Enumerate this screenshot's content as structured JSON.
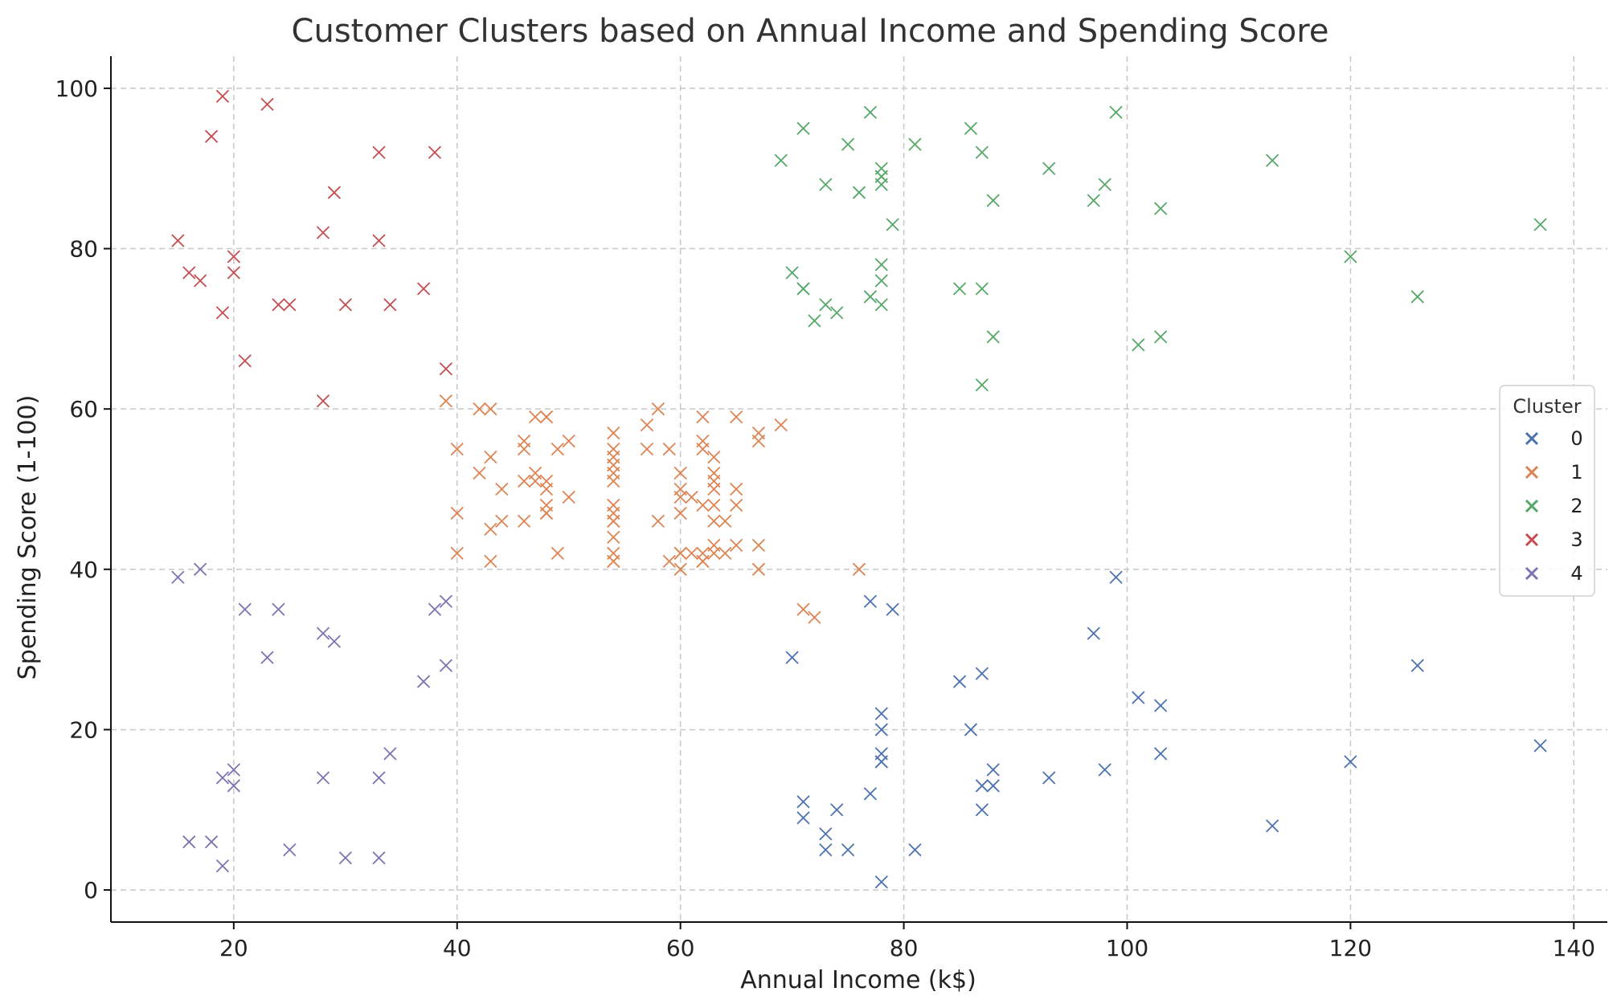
{
  "chart_data": {
    "type": "scatter",
    "title": "Customer Clusters based on Annual Income and Spending Score",
    "xlabel": "Annual Income (k$)",
    "ylabel": "Spending Score (1-100)",
    "xlim": [
      9,
      143
    ],
    "ylim": [
      -4,
      104
    ],
    "xticks": [
      20,
      40,
      60,
      80,
      100,
      120,
      140
    ],
    "yticks": [
      0,
      20,
      40,
      60,
      80,
      100
    ],
    "grid": true,
    "marker": "x",
    "legend": {
      "title": "Cluster",
      "placement": "right"
    },
    "series": [
      {
        "name": "0",
        "color": "#4c72b0",
        "x": [
          70,
          71,
          71,
          73,
          73,
          74,
          75,
          77,
          77,
          78,
          78,
          78,
          78,
          78,
          78,
          79,
          81,
          85,
          86,
          87,
          87,
          87,
          88,
          88,
          93,
          97,
          98,
          99,
          101,
          103,
          103,
          113,
          120,
          126,
          137
        ],
        "y": [
          29,
          11,
          9,
          7,
          5,
          10,
          5,
          12,
          36,
          22,
          20,
          17,
          16,
          1,
          16,
          35,
          5,
          26,
          20,
          27,
          13,
          10,
          13,
          15,
          14,
          32,
          15,
          39,
          24,
          17,
          23,
          8,
          16,
          28,
          18
        ]
      },
      {
        "name": "1",
        "color": "#dd8452",
        "x": [
          39,
          40,
          40,
          40,
          42,
          42,
          43,
          43,
          43,
          43,
          44,
          44,
          46,
          46,
          46,
          46,
          47,
          47,
          47,
          48,
          48,
          48,
          48,
          48,
          48,
          48,
          49,
          49,
          50,
          50,
          54,
          54,
          54,
          54,
          54,
          54,
          54,
          54,
          54,
          54,
          54,
          54,
          54,
          54,
          57,
          57,
          58,
          58,
          59,
          59,
          60,
          60,
          60,
          60,
          60,
          60,
          60,
          61,
          61,
          62,
          62,
          62,
          62,
          62,
          62,
          62,
          63,
          63,
          63,
          63,
          63,
          63,
          63,
          63,
          64,
          64,
          65,
          65,
          65,
          65,
          67,
          67,
          67,
          67,
          69,
          71,
          72,
          76
        ],
        "y": [
          61,
          55,
          47,
          42,
          60,
          52,
          60,
          54,
          45,
          41,
          50,
          46,
          51,
          46,
          56,
          55,
          52,
          59,
          51,
          59,
          50,
          48,
          59,
          47,
          51,
          47,
          55,
          42,
          56,
          49,
          57,
          55,
          54,
          53,
          52,
          51,
          48,
          47,
          46,
          44,
          42,
          41,
          41,
          46,
          58,
          55,
          60,
          46,
          55,
          41,
          49,
          40,
          42,
          52,
          47,
          50,
          42,
          49,
          42,
          59,
          56,
          55,
          48,
          41,
          42,
          41,
          54,
          51,
          52,
          48,
          46,
          43,
          50,
          42,
          46,
          42,
          48,
          50,
          43,
          59,
          43,
          57,
          56,
          40,
          58,
          35,
          34,
          40
        ]
      },
      {
        "name": "2",
        "color": "#55a868",
        "x": [
          69,
          70,
          71,
          71,
          71,
          72,
          73,
          73,
          74,
          75,
          76,
          77,
          77,
          78,
          78,
          78,
          78,
          78,
          78,
          78,
          79,
          81,
          85,
          86,
          87,
          87,
          87,
          88,
          88,
          93,
          97,
          98,
          99,
          101,
          103,
          103,
          113,
          120,
          126,
          137
        ],
        "y": [
          91,
          77,
          95,
          75,
          75,
          71,
          88,
          73,
          72,
          93,
          87,
          97,
          74,
          90,
          88,
          76,
          89,
          78,
          73,
          89,
          83,
          93,
          75,
          95,
          63,
          75,
          92,
          86,
          69,
          90,
          86,
          88,
          97,
          68,
          85,
          69,
          91,
          79,
          74,
          83
        ]
      },
      {
        "name": "3",
        "color": "#c44e52",
        "x": [
          15,
          16,
          17,
          18,
          19,
          19,
          20,
          20,
          21,
          23,
          24,
          25,
          28,
          28,
          29,
          30,
          33,
          33,
          34,
          37,
          38,
          39
        ],
        "y": [
          81,
          77,
          76,
          94,
          72,
          99,
          77,
          79,
          66,
          98,
          73,
          73,
          82,
          61,
          87,
          73,
          92,
          81,
          73,
          75,
          92,
          65
        ]
      },
      {
        "name": "4",
        "color": "#8172b3",
        "x": [
          15,
          16,
          17,
          18,
          19,
          19,
          20,
          20,
          21,
          23,
          24,
          25,
          28,
          28,
          29,
          30,
          33,
          33,
          34,
          37,
          38,
          39,
          39
        ],
        "y": [
          39,
          6,
          40,
          6,
          3,
          14,
          15,
          13,
          35,
          29,
          35,
          5,
          14,
          32,
          31,
          4,
          4,
          14,
          17,
          26,
          35,
          36,
          28
        ]
      }
    ]
  }
}
